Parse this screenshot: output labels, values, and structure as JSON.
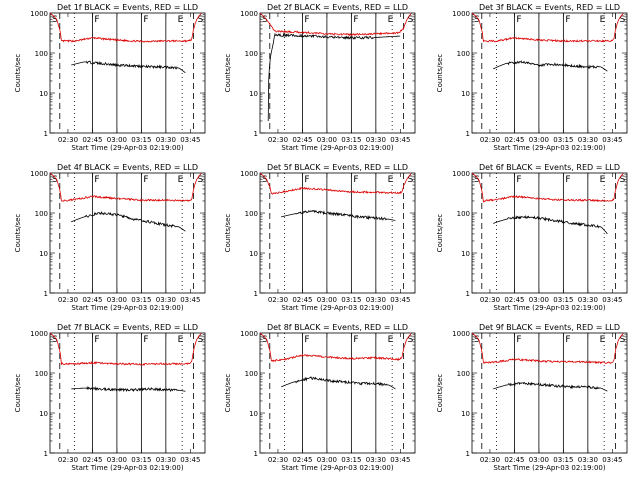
{
  "chart_data": [
    {
      "type": "line",
      "title": "Det 1f BLACK = Events, RED = LLD",
      "xlabel": "Start Time (29-Apr-03 02:19:00)",
      "ylabel": "Counts/sec",
      "yscale": "log",
      "ylim": [
        1,
        1000
      ],
      "yticks": [
        "1",
        "10",
        "100",
        "1000"
      ],
      "xticks": [
        "02:30",
        "02:45",
        "03:00",
        "03:15",
        "03:30",
        "03:45"
      ],
      "markers": [
        "S",
        "F",
        "F",
        "E",
        "S"
      ],
      "series": [
        {
          "name": "RED",
          "color": "#dd0000",
          "x": [
            "02:19",
            "02:23",
            "02:26",
            "02:35",
            "02:45",
            "03:00",
            "03:15",
            "03:30",
            "03:44",
            "03:46",
            "03:49",
            "03:52"
          ],
          "values": [
            1000,
            700,
            200,
            200,
            240,
            210,
            195,
            200,
            200,
            220,
            700,
            1000
          ]
        },
        {
          "name": "BLACK",
          "color": "#000000",
          "x": [
            "02:32",
            "02:40",
            "02:50",
            "03:00",
            "03:10",
            "03:20",
            "03:30",
            "03:38",
            "03:42"
          ],
          "values": [
            50,
            60,
            55,
            50,
            48,
            45,
            45,
            42,
            32
          ]
        }
      ]
    },
    {
      "type": "line",
      "title": "Det 2f BLACK = Events, RED = LLD",
      "xlabel": "Start Time (29-Apr-03 02:19:00)",
      "ylabel": "Counts/sec",
      "yscale": "log",
      "ylim": [
        1,
        1000
      ],
      "yticks": [
        "1",
        "10",
        "100",
        "1000"
      ],
      "xticks": [
        "02:30",
        "02:45",
        "03:00",
        "03:15",
        "03:30",
        "03:45"
      ],
      "markers": [
        "S",
        "F",
        "F",
        "E",
        "S"
      ],
      "series": [
        {
          "name": "RED",
          "color": "#dd0000",
          "x": [
            "02:19",
            "02:24",
            "02:28",
            "02:35",
            "02:45",
            "03:00",
            "03:15",
            "03:30",
            "03:44",
            "03:47",
            "03:50",
            "03:52"
          ],
          "values": [
            1000,
            600,
            350,
            340,
            330,
            300,
            290,
            300,
            320,
            400,
            800,
            1000
          ]
        },
        {
          "name": "BLACK",
          "color": "#000000",
          "x": [
            "02:24",
            "02:27",
            "02:28",
            "02:35",
            "02:45",
            "03:00",
            "03:15",
            "03:30",
            "03:45"
          ],
          "values": [
            2,
            160,
            280,
            280,
            270,
            250,
            240,
            245,
            265
          ]
        }
      ]
    },
    {
      "type": "line",
      "title": "Det 3f BLACK = Events, RED = LLD",
      "xlabel": "Start Time (29-Apr-03 02:19:00)",
      "ylabel": "Counts/sec",
      "yscale": "log",
      "ylim": [
        1,
        1000
      ],
      "yticks": [
        "1",
        "10",
        "100",
        "1000"
      ],
      "xticks": [
        "02:30",
        "02:45",
        "03:00",
        "03:15",
        "03:30",
        "03:45"
      ],
      "markers": [
        "S",
        "F",
        "F",
        "E",
        "S"
      ],
      "series": [
        {
          "name": "RED",
          "color": "#dd0000",
          "x": [
            "02:19",
            "02:23",
            "02:26",
            "02:35",
            "02:45",
            "03:00",
            "03:15",
            "03:30",
            "03:44",
            "03:46",
            "03:49",
            "03:52"
          ],
          "values": [
            1000,
            700,
            200,
            200,
            240,
            210,
            200,
            200,
            200,
            220,
            700,
            1000
          ]
        },
        {
          "name": "BLACK",
          "color": "#000000",
          "x": [
            "02:32",
            "02:40",
            "02:50",
            "03:00",
            "03:10",
            "03:20",
            "03:30",
            "03:38",
            "03:42"
          ],
          "values": [
            40,
            55,
            60,
            50,
            52,
            48,
            45,
            45,
            35
          ]
        }
      ]
    },
    {
      "type": "line",
      "title": "Det 4f BLACK = Events, RED = LLD",
      "xlabel": "Start Time (29-Apr-03 02:19:00)",
      "ylabel": "Counts/sec",
      "yscale": "log",
      "ylim": [
        1,
        1000
      ],
      "yticks": [
        "1",
        "10",
        "100",
        "1000"
      ],
      "xticks": [
        "02:30",
        "02:45",
        "03:00",
        "03:15",
        "03:30",
        "03:45"
      ],
      "markers": [
        "S",
        "F",
        "F",
        "E",
        "S"
      ],
      "series": [
        {
          "name": "RED",
          "color": "#dd0000",
          "x": [
            "02:19",
            "02:23",
            "02:26",
            "02:35",
            "02:45",
            "03:00",
            "03:15",
            "03:30",
            "03:44",
            "03:46",
            "03:49",
            "03:52"
          ],
          "values": [
            1000,
            700,
            200,
            220,
            260,
            230,
            210,
            210,
            200,
            220,
            700,
            1000
          ]
        },
        {
          "name": "BLACK",
          "color": "#000000",
          "x": [
            "02:32",
            "02:40",
            "02:50",
            "03:00",
            "03:10",
            "03:20",
            "03:30",
            "03:38",
            "03:42"
          ],
          "values": [
            60,
            80,
            100,
            90,
            70,
            60,
            50,
            45,
            35
          ]
        }
      ]
    },
    {
      "type": "line",
      "title": "Det 5f BLACK = Events, RED = LLD",
      "xlabel": "Start Time (29-Apr-03 02:19:00)",
      "ylabel": "Counts/sec",
      "yscale": "log",
      "ylim": [
        1,
        1000
      ],
      "yticks": [
        "1",
        "10",
        "100",
        "1000"
      ],
      "xticks": [
        "02:30",
        "02:45",
        "03:00",
        "03:15",
        "03:30",
        "03:45"
      ],
      "markers": [
        "S",
        "F",
        "F",
        "E",
        "S"
      ],
      "series": [
        {
          "name": "RED",
          "color": "#dd0000",
          "x": [
            "02:19",
            "02:23",
            "02:26",
            "02:35",
            "02:45",
            "03:00",
            "03:15",
            "03:30",
            "03:44",
            "03:46",
            "03:49",
            "03:52"
          ],
          "values": [
            1000,
            700,
            300,
            350,
            420,
            380,
            340,
            330,
            320,
            330,
            700,
            1000
          ]
        },
        {
          "name": "BLACK",
          "color": "#000000",
          "x": [
            "02:32",
            "02:40",
            "02:50",
            "03:00",
            "03:10",
            "03:20",
            "03:30",
            "03:38",
            "03:42"
          ],
          "values": [
            80,
            95,
            110,
            100,
            90,
            80,
            75,
            70,
            65
          ]
        }
      ]
    },
    {
      "type": "line",
      "title": "Det 6f BLACK = Events, RED = LLD",
      "xlabel": "Start Time (29-Apr-03 02:19:00)",
      "ylabel": "Counts/sec",
      "yscale": "log",
      "ylim": [
        1,
        1000
      ],
      "yticks": [
        "1",
        "10",
        "100",
        "1000"
      ],
      "xticks": [
        "02:30",
        "02:45",
        "03:00",
        "03:15",
        "03:30",
        "03:45"
      ],
      "markers": [
        "S",
        "F",
        "F",
        "E",
        "S"
      ],
      "series": [
        {
          "name": "RED",
          "color": "#dd0000",
          "x": [
            "02:19",
            "02:23",
            "02:26",
            "02:35",
            "02:45",
            "03:00",
            "03:15",
            "03:30",
            "03:44",
            "03:46",
            "03:49",
            "03:52"
          ],
          "values": [
            1000,
            700,
            200,
            220,
            260,
            230,
            210,
            210,
            200,
            220,
            700,
            1000
          ]
        },
        {
          "name": "BLACK",
          "color": "#000000",
          "x": [
            "02:32",
            "02:40",
            "02:50",
            "03:00",
            "03:10",
            "03:20",
            "03:30",
            "03:38",
            "03:42"
          ],
          "values": [
            55,
            70,
            80,
            75,
            65,
            55,
            50,
            45,
            30
          ]
        }
      ]
    },
    {
      "type": "line",
      "title": "Det 7f BLACK = Events, RED = LLD",
      "xlabel": "Start Time (29-Apr-03 02:19:00)",
      "ylabel": "Counts/sec",
      "yscale": "log",
      "ylim": [
        1,
        1000
      ],
      "yticks": [
        "1",
        "10",
        "100",
        "1000"
      ],
      "xticks": [
        "02:30",
        "02:45",
        "03:00",
        "03:15",
        "03:30",
        "03:45"
      ],
      "markers": [
        "S",
        "F",
        "F",
        "E",
        "S"
      ],
      "series": [
        {
          "name": "RED",
          "color": "#dd0000",
          "x": [
            "02:19",
            "02:23",
            "02:26",
            "02:35",
            "02:45",
            "03:00",
            "03:15",
            "03:30",
            "03:44",
            "03:46",
            "03:49",
            "03:52"
          ],
          "values": [
            1000,
            700,
            170,
            170,
            180,
            170,
            165,
            170,
            170,
            190,
            700,
            1000
          ]
        },
        {
          "name": "BLACK",
          "color": "#000000",
          "x": [
            "02:32",
            "02:40",
            "02:50",
            "03:00",
            "03:10",
            "03:20",
            "03:30",
            "03:38",
            "03:42"
          ],
          "values": [
            40,
            42,
            40,
            38,
            38,
            40,
            38,
            37,
            35
          ]
        }
      ]
    },
    {
      "type": "line",
      "title": "Det 8f BLACK = Events, RED = LLD",
      "xlabel": "Start Time (29-Apr-03 02:19:00)",
      "ylabel": "Counts/sec",
      "yscale": "log",
      "ylim": [
        1,
        1000
      ],
      "yticks": [
        "1",
        "10",
        "100",
        "1000"
      ],
      "xticks": [
        "02:30",
        "02:45",
        "03:00",
        "03:15",
        "03:30",
        "03:45"
      ],
      "markers": [
        "S",
        "F",
        "F",
        "E",
        "S"
      ],
      "series": [
        {
          "name": "RED",
          "color": "#dd0000",
          "x": [
            "02:19",
            "02:23",
            "02:26",
            "02:35",
            "02:45",
            "03:00",
            "03:15",
            "03:30",
            "03:44",
            "03:46",
            "03:49",
            "03:52"
          ],
          "values": [
            1000,
            700,
            200,
            220,
            280,
            250,
            230,
            240,
            220,
            240,
            700,
            1000
          ]
        },
        {
          "name": "BLACK",
          "color": "#000000",
          "x": [
            "02:32",
            "02:40",
            "02:50",
            "03:00",
            "03:10",
            "03:20",
            "03:30",
            "03:38",
            "03:42"
          ],
          "values": [
            45,
            60,
            75,
            65,
            60,
            55,
            55,
            50,
            40
          ]
        }
      ]
    },
    {
      "type": "line",
      "title": "Det 9f BLACK = Events, RED = LLD",
      "xlabel": "Start Time (29-Apr-03 02:19:00)",
      "ylabel": "Counts/sec",
      "yscale": "log",
      "ylim": [
        1,
        1000
      ],
      "yticks": [
        "1",
        "10",
        "100",
        "1000"
      ],
      "xticks": [
        "02:30",
        "02:45",
        "03:00",
        "03:15",
        "03:30",
        "03:45"
      ],
      "markers": [
        "S",
        "F",
        "F",
        "E",
        "S"
      ],
      "series": [
        {
          "name": "RED",
          "color": "#dd0000",
          "x": [
            "02:19",
            "02:23",
            "02:26",
            "02:35",
            "02:45",
            "03:00",
            "03:15",
            "03:30",
            "03:44",
            "03:46",
            "03:49",
            "03:52"
          ],
          "values": [
            1000,
            700,
            180,
            190,
            220,
            200,
            190,
            190,
            180,
            200,
            700,
            1000
          ]
        },
        {
          "name": "BLACK",
          "color": "#000000",
          "x": [
            "02:32",
            "02:40",
            "02:50",
            "03:00",
            "03:10",
            "03:20",
            "03:30",
            "03:38",
            "03:42"
          ],
          "values": [
            40,
            50,
            55,
            52,
            48,
            45,
            45,
            42,
            35
          ]
        }
      ]
    }
  ],
  "time_axis": {
    "start": "02:19",
    "end": "03:54",
    "solid_lines": [
      "02:45",
      "03:00",
      "03:15",
      "03:30"
    ],
    "dashed_lines": [
      "02:25",
      "03:47"
    ],
    "dotted_lines": [
      "02:34",
      "03:40"
    ]
  }
}
